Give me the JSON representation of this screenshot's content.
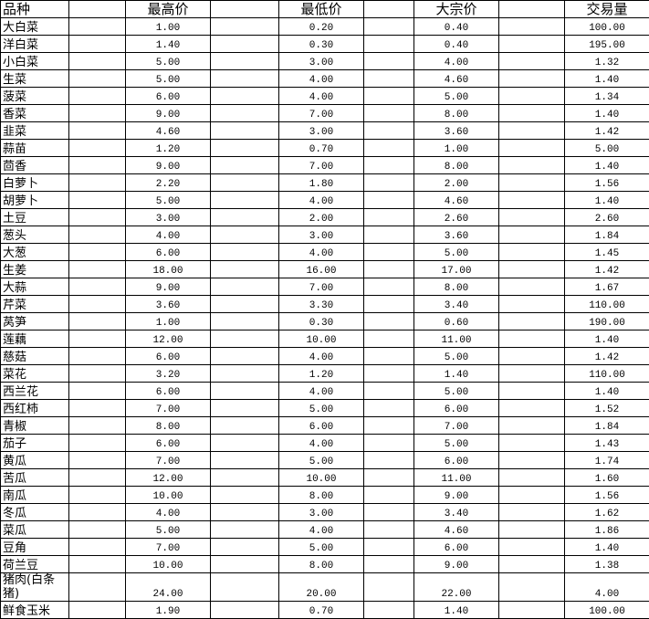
{
  "table": {
    "headers": [
      "品种",
      "最高价",
      "最低价",
      "大宗价",
      "交易量"
    ],
    "rows": [
      [
        "大白菜",
        "1.00",
        "0.20",
        "0.40",
        "100.00"
      ],
      [
        "洋白菜",
        "1.40",
        "0.30",
        "0.40",
        "195.00"
      ],
      [
        "小白菜",
        "5.00",
        "3.00",
        "4.00",
        "1.32"
      ],
      [
        "生菜",
        "5.00",
        "4.00",
        "4.60",
        "1.40"
      ],
      [
        "菠菜",
        "6.00",
        "4.00",
        "5.00",
        "1.34"
      ],
      [
        "香菜",
        "9.00",
        "7.00",
        "8.00",
        "1.40"
      ],
      [
        "韭菜",
        "4.60",
        "3.00",
        "3.60",
        "1.42"
      ],
      [
        "蒜苗",
        "1.20",
        "0.70",
        "1.00",
        "5.00"
      ],
      [
        "茴香",
        "9.00",
        "7.00",
        "8.00",
        "1.40"
      ],
      [
        "白萝卜",
        "2.20",
        "1.80",
        "2.00",
        "1.56"
      ],
      [
        "胡萝卜",
        "5.00",
        "4.00",
        "4.60",
        "1.40"
      ],
      [
        "土豆",
        "3.00",
        "2.00",
        "2.60",
        "2.60"
      ],
      [
        "葱头",
        "4.00",
        "3.00",
        "3.60",
        "1.84"
      ],
      [
        "大葱",
        "6.00",
        "4.00",
        "5.00",
        "1.45"
      ],
      [
        "生姜",
        "18.00",
        "16.00",
        "17.00",
        "1.42"
      ],
      [
        "大蒜",
        "9.00",
        "7.00",
        "8.00",
        "1.67"
      ],
      [
        "芹菜",
        "3.60",
        "3.30",
        "3.40",
        "110.00"
      ],
      [
        "莴笋",
        "1.00",
        "0.30",
        "0.60",
        "190.00"
      ],
      [
        "莲藕",
        "12.00",
        "10.00",
        "11.00",
        "1.40"
      ],
      [
        "慈菇",
        "6.00",
        "4.00",
        "5.00",
        "1.42"
      ],
      [
        "菜花",
        "3.20",
        "1.20",
        "1.40",
        "110.00"
      ],
      [
        "西兰花",
        "6.00",
        "4.00",
        "5.00",
        "1.40"
      ],
      [
        "西红柿",
        "7.00",
        "5.00",
        "6.00",
        "1.52"
      ],
      [
        "青椒",
        "8.00",
        "6.00",
        "7.00",
        "1.84"
      ],
      [
        "茄子",
        "6.00",
        "4.00",
        "5.00",
        "1.43"
      ],
      [
        "黄瓜",
        "7.00",
        "5.00",
        "6.00",
        "1.74"
      ],
      [
        "苦瓜",
        "12.00",
        "10.00",
        "11.00",
        "1.60"
      ],
      [
        "南瓜",
        "10.00",
        "8.00",
        "9.00",
        "1.56"
      ],
      [
        "冬瓜",
        "4.00",
        "3.00",
        "3.40",
        "1.62"
      ],
      [
        "菜瓜",
        "5.00",
        "4.00",
        "4.60",
        "1.86"
      ],
      [
        "豆角",
        "7.00",
        "5.00",
        "6.00",
        "1.40"
      ],
      [
        "荷兰豆",
        "10.00",
        "8.00",
        "9.00",
        "1.38"
      ],
      [
        "猪肉(白条猪)",
        "24.00",
        "20.00",
        "22.00",
        "4.00"
      ],
      [
        "鲜食玉米",
        "1.90",
        "0.70",
        "1.40",
        "100.00"
      ]
    ]
  }
}
